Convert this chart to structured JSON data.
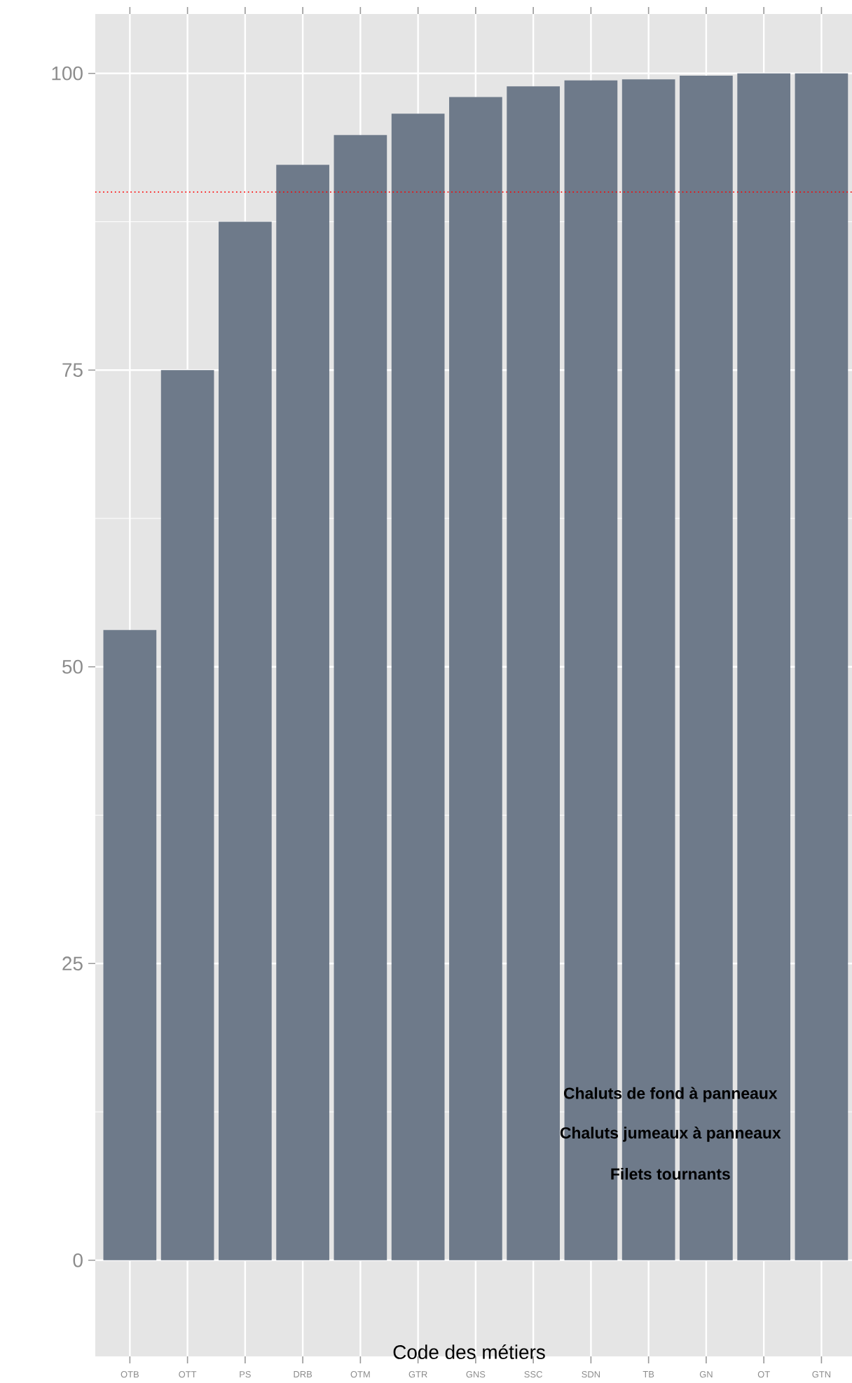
{
  "chart_data": {
    "type": "bar",
    "xlabel": "Code des métiers",
    "categories": [
      "OTB",
      "OTT",
      "PS",
      "DRB",
      "OTM",
      "GTR",
      "GNS",
      "SSC",
      "SDN",
      "TB",
      "GN",
      "OT",
      "GTN"
    ],
    "values": [
      53.1,
      75.0,
      87.5,
      92.3,
      94.8,
      96.6,
      98.0,
      98.9,
      99.4,
      99.5,
      99.8,
      100,
      100
    ],
    "color": "#6e7a8a",
    "ylim": [
      -8.1,
      105
    ],
    "yticks": [
      0,
      25,
      50,
      75,
      100
    ],
    "grid": true,
    "ref_lines": [
      {
        "axis": "y",
        "value": 90,
        "color": "#ff0000",
        "line_style": "dotted"
      }
    ],
    "annotations": [
      "Chaluts de fond à panneaux",
      "Chaluts jumeaux à panneaux",
      "Filets tournants"
    ]
  }
}
